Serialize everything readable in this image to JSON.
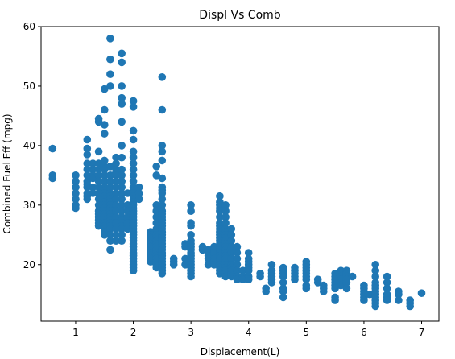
{
  "chart_data": {
    "type": "scatter",
    "title": "Displ Vs Comb",
    "xlabel": "Displacement(L)",
    "ylabel": "Combined Fuel Eff (mpg)",
    "xlim": [
      0.4,
      7.3
    ],
    "ylim": [
      10.5,
      60
    ],
    "xticks": [
      1,
      2,
      3,
      4,
      5,
      6,
      7
    ],
    "yticks": [
      20,
      30,
      40,
      50,
      60
    ],
    "grid": false,
    "point_color": "#1f77b4",
    "columns": [
      {
        "x": 0.6,
        "y": [
          39.5,
          35,
          34.5
        ]
      },
      {
        "x": 1.0,
        "y": [
          35,
          34,
          33,
          32,
          31,
          30,
          29.5
        ]
      },
      {
        "x": 1.2,
        "y": [
          41,
          39.5,
          38.5,
          37,
          36,
          35,
          34,
          33.5,
          33,
          32,
          31.5,
          31
        ]
      },
      {
        "x": 1.3,
        "y": [
          37,
          36,
          35,
          34.5,
          33,
          32
        ]
      },
      {
        "x": 1.4,
        "y": [
          44.5,
          44,
          39,
          37,
          36,
          35,
          34,
          33,
          32,
          31,
          30,
          29,
          28.5,
          28,
          27.5,
          27,
          26.5
        ]
      },
      {
        "x": 1.5,
        "y": [
          49.5,
          46,
          43.5,
          42,
          37.5,
          36.5,
          36,
          35,
          34,
          33,
          32.5,
          32,
          31.5,
          31,
          30.5,
          30,
          29.5,
          29,
          28.5,
          28,
          27.5,
          27,
          26.5,
          26,
          25.5,
          25
        ]
      },
      {
        "x": 1.6,
        "y": [
          58,
          54.5,
          52,
          50,
          36.5,
          35,
          34,
          33,
          32,
          31.5,
          31,
          30.5,
          30,
          29.5,
          29,
          28.5,
          28,
          27.5,
          27,
          26.5,
          26,
          25,
          24,
          22.5
        ]
      },
      {
        "x": 1.7,
        "y": [
          38,
          37,
          36,
          35.5,
          35,
          34,
          33,
          32,
          31,
          30,
          29,
          28,
          27,
          26,
          25,
          24
        ]
      },
      {
        "x": 1.8,
        "y": [
          55.5,
          54,
          50,
          48,
          47,
          44,
          40,
          38,
          36,
          35,
          34,
          33,
          32,
          31,
          30,
          29,
          28,
          27.5,
          27,
          26.5,
          26,
          25,
          24
        ]
      },
      {
        "x": 1.9,
        "y": [
          32,
          30,
          29,
          28,
          27,
          26
        ]
      },
      {
        "x": 2.0,
        "y": [
          47.5,
          46.5,
          42.5,
          41,
          39,
          38,
          37,
          36,
          35,
          34,
          33,
          32.5,
          32,
          31.5,
          31,
          30.5,
          30,
          29.5,
          29,
          28.5,
          28,
          27.5,
          27,
          26.5,
          26,
          25.5,
          25,
          24.5,
          24,
          23.5,
          23,
          22.5,
          22,
          21.5,
          21,
          20.5,
          20,
          19.5,
          19
        ]
      },
      {
        "x": 2.1,
        "y": [
          33,
          32,
          31
        ]
      },
      {
        "x": 2.3,
        "y": [
          25.5,
          25,
          24.5,
          24,
          23.5,
          23,
          22.5,
          22,
          21.5,
          21,
          20.5
        ]
      },
      {
        "x": 2.4,
        "y": [
          36.5,
          35,
          30,
          29,
          28,
          27,
          26,
          25,
          24.5,
          24,
          23.5,
          23,
          22.5,
          22,
          21.5,
          21,
          20.5,
          20,
          19.5
        ]
      },
      {
        "x": 2.5,
        "y": [
          51.5,
          46,
          40,
          39,
          37.5,
          34.5,
          33,
          32.5,
          32,
          31,
          30,
          29,
          28.5,
          28,
          27.5,
          27,
          26.5,
          26,
          25.5,
          25,
          24.5,
          24,
          23.5,
          23,
          22.5,
          22,
          21.5,
          21,
          20.5,
          20,
          19.5,
          19,
          18.5
        ]
      },
      {
        "x": 2.7,
        "y": [
          21,
          20.5,
          20
        ]
      },
      {
        "x": 2.9,
        "y": [
          23.5,
          23,
          21,
          20
        ]
      },
      {
        "x": 3.0,
        "y": [
          30,
          29,
          27,
          26.5,
          25,
          24,
          23.5,
          23,
          22.5,
          22,
          21.5,
          21,
          20.5,
          20,
          19.5,
          19,
          18.5,
          18
        ]
      },
      {
        "x": 3.2,
        "y": [
          23,
          22.5
        ]
      },
      {
        "x": 3.3,
        "y": [
          22.5,
          22,
          21.5,
          21,
          20
        ]
      },
      {
        "x": 3.4,
        "y": [
          23,
          22.5,
          22,
          21,
          20.5,
          20
        ]
      },
      {
        "x": 3.5,
        "y": [
          31.5,
          30.5,
          30,
          29.5,
          29,
          28,
          27,
          26.5,
          26,
          25.5,
          25,
          24.5,
          24,
          23.5,
          23,
          22.5,
          22,
          21.5,
          21,
          20.5,
          20,
          19.5,
          19,
          18.5
        ]
      },
      {
        "x": 3.6,
        "y": [
          30,
          29,
          28,
          27,
          26,
          25.5,
          25,
          24.5,
          24,
          23.5,
          23,
          22.5,
          22,
          21.5,
          21,
          20.5,
          20,
          19.5,
          19,
          18.5,
          18
        ]
      },
      {
        "x": 3.7,
        "y": [
          26,
          25,
          24,
          23,
          22,
          21,
          20,
          19.5,
          19,
          18.5,
          18
        ]
      },
      {
        "x": 3.8,
        "y": [
          23,
          22,
          21,
          20,
          19,
          18,
          17.5
        ]
      },
      {
        "x": 3.9,
        "y": [
          19,
          18,
          17.5
        ]
      },
      {
        "x": 4.0,
        "y": [
          22,
          21,
          20.5,
          20,
          19.5,
          19,
          18,
          17.5
        ]
      },
      {
        "x": 4.2,
        "y": [
          18.5,
          18
        ]
      },
      {
        "x": 4.3,
        "y": [
          16,
          15.5
        ]
      },
      {
        "x": 4.4,
        "y": [
          20,
          19,
          18.5,
          18,
          17.5,
          17
        ]
      },
      {
        "x": 4.6,
        "y": [
          19.5,
          19,
          18.5,
          18,
          17,
          16,
          15.5,
          14.5
        ]
      },
      {
        "x": 4.8,
        "y": [
          19.5,
          19,
          18.5,
          18,
          17.5
        ]
      },
      {
        "x": 5.0,
        "y": [
          20.5,
          20,
          19.5,
          19,
          18.5,
          18,
          17.5,
          16.5,
          16
        ]
      },
      {
        "x": 5.2,
        "y": [
          17.5,
          17
        ]
      },
      {
        "x": 5.3,
        "y": [
          16.5,
          16,
          15.5
        ]
      },
      {
        "x": 5.5,
        "y": [
          18.5,
          18,
          17.5,
          17,
          16.5,
          16,
          14.5,
          14
        ]
      },
      {
        "x": 5.6,
        "y": [
          19,
          18.5,
          18,
          17.5,
          17,
          16.5
        ]
      },
      {
        "x": 5.7,
        "y": [
          19,
          18.5,
          18,
          17.5,
          17,
          16
        ]
      },
      {
        "x": 5.8,
        "y": [
          18
        ]
      },
      {
        "x": 6.0,
        "y": [
          16.5,
          16,
          15.5,
          15,
          14.5,
          14
        ]
      },
      {
        "x": 6.1,
        "y": [
          15
        ]
      },
      {
        "x": 6.2,
        "y": [
          20,
          19,
          18,
          17,
          16.5,
          16,
          15.5,
          15,
          14.5,
          14,
          13.5,
          13
        ]
      },
      {
        "x": 6.4,
        "y": [
          18,
          17,
          16,
          15,
          14.5,
          14
        ]
      },
      {
        "x": 6.6,
        "y": [
          15.5,
          15,
          14
        ]
      },
      {
        "x": 6.8,
        "y": [
          14,
          13.5,
          13
        ]
      },
      {
        "x": 7.0,
        "y": [
          15.2
        ]
      }
    ]
  }
}
